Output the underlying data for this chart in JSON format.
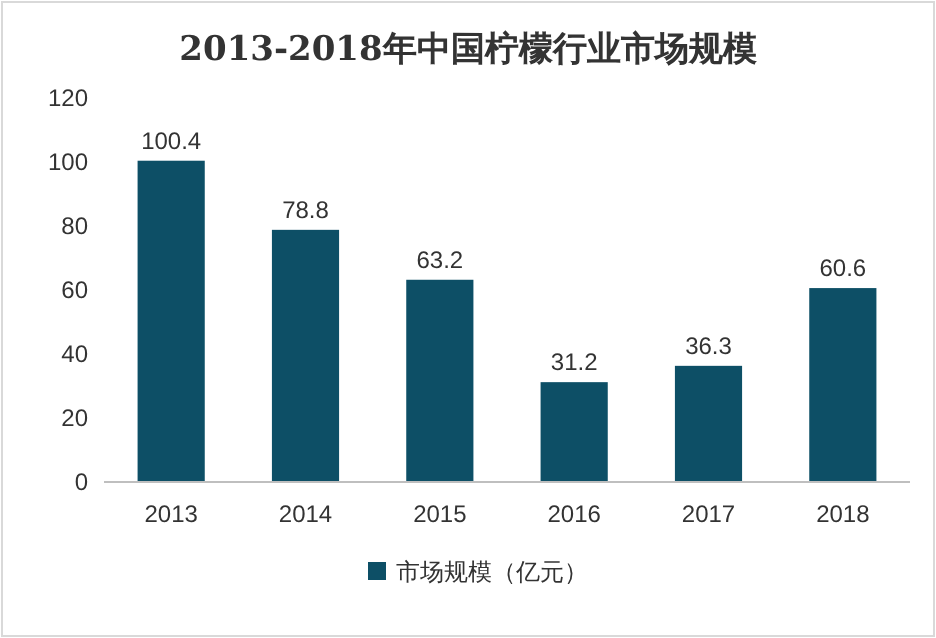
{
  "chart_data": {
    "type": "bar",
    "title": "2013-2018年中国柠檬行业市场规模",
    "categories": [
      "2013",
      "2014",
      "2015",
      "2016",
      "2017",
      "2018"
    ],
    "series": [
      {
        "name": "市场规模（亿元）",
        "color": "#0d4f66",
        "values": [
          100.4,
          78.8,
          63.2,
          31.2,
          36.3,
          60.6
        ]
      }
    ],
    "ylim": [
      0,
      120
    ],
    "yticks": [
      0,
      20,
      40,
      60,
      80,
      100,
      120
    ],
    "data_labels": true,
    "legend": "bottom",
    "grid": false
  }
}
